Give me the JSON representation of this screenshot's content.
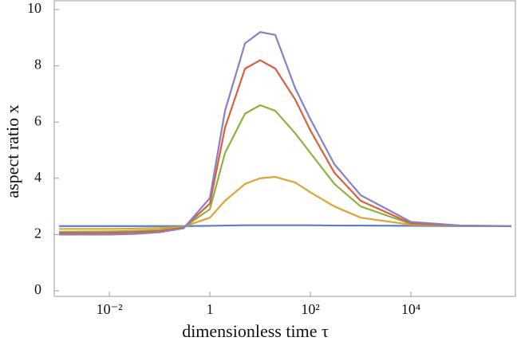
{
  "chart_data": {
    "type": "line",
    "x_label": "dimensionless time τ",
    "y_label": "aspect ratio x",
    "x": [
      0.001,
      0.01,
      0.03,
      0.1,
      0.3,
      1,
      2,
      5,
      10,
      20,
      50,
      100,
      300,
      1000,
      10000,
      100000,
      1000000
    ],
    "series": [
      {
        "name": "blue",
        "color": "#5b7fc0",
        "values": [
          2.3,
          2.3,
          2.3,
          2.3,
          2.3,
          2.31,
          2.32,
          2.33,
          2.33,
          2.33,
          2.33,
          2.33,
          2.32,
          2.32,
          2.31,
          2.3,
          2.3
        ]
      },
      {
        "name": "orange",
        "color": "#dba33a",
        "values": [
          2.2,
          2.2,
          2.21,
          2.23,
          2.28,
          2.6,
          3.2,
          3.8,
          4.0,
          4.05,
          3.85,
          3.5,
          3.0,
          2.6,
          2.35,
          2.31,
          2.3
        ]
      },
      {
        "name": "green",
        "color": "#8fb03e",
        "values": [
          2.1,
          2.11,
          2.13,
          2.16,
          2.26,
          2.9,
          4.9,
          6.3,
          6.6,
          6.4,
          5.6,
          4.9,
          3.8,
          3.0,
          2.38,
          2.31,
          2.3
        ]
      },
      {
        "name": "red",
        "color": "#d9603b",
        "values": [
          2.05,
          2.06,
          2.08,
          2.12,
          2.24,
          3.1,
          5.8,
          7.9,
          8.2,
          7.9,
          6.8,
          5.7,
          4.2,
          3.2,
          2.4,
          2.32,
          2.3
        ]
      },
      {
        "name": "purple",
        "color": "#8a7fc6",
        "values": [
          2.0,
          2.0,
          2.02,
          2.08,
          2.22,
          3.3,
          6.4,
          8.8,
          9.2,
          9.1,
          7.2,
          6.1,
          4.5,
          3.4,
          2.45,
          2.32,
          2.3
        ]
      }
    ],
    "log_x": true,
    "xlim": [
      0.0008,
      1200000
    ],
    "xticks": [
      {
        "value": 0.01,
        "label": "10⁻²"
      },
      1,
      {
        "value": 100,
        "label": "10²"
      },
      {
        "value": 10000,
        "label": "10⁴"
      }
    ],
    "ylim": [
      -0.2,
      10.1
    ],
    "yticks": [
      0,
      2,
      4,
      6,
      8,
      10
    ],
    "grid": false
  }
}
